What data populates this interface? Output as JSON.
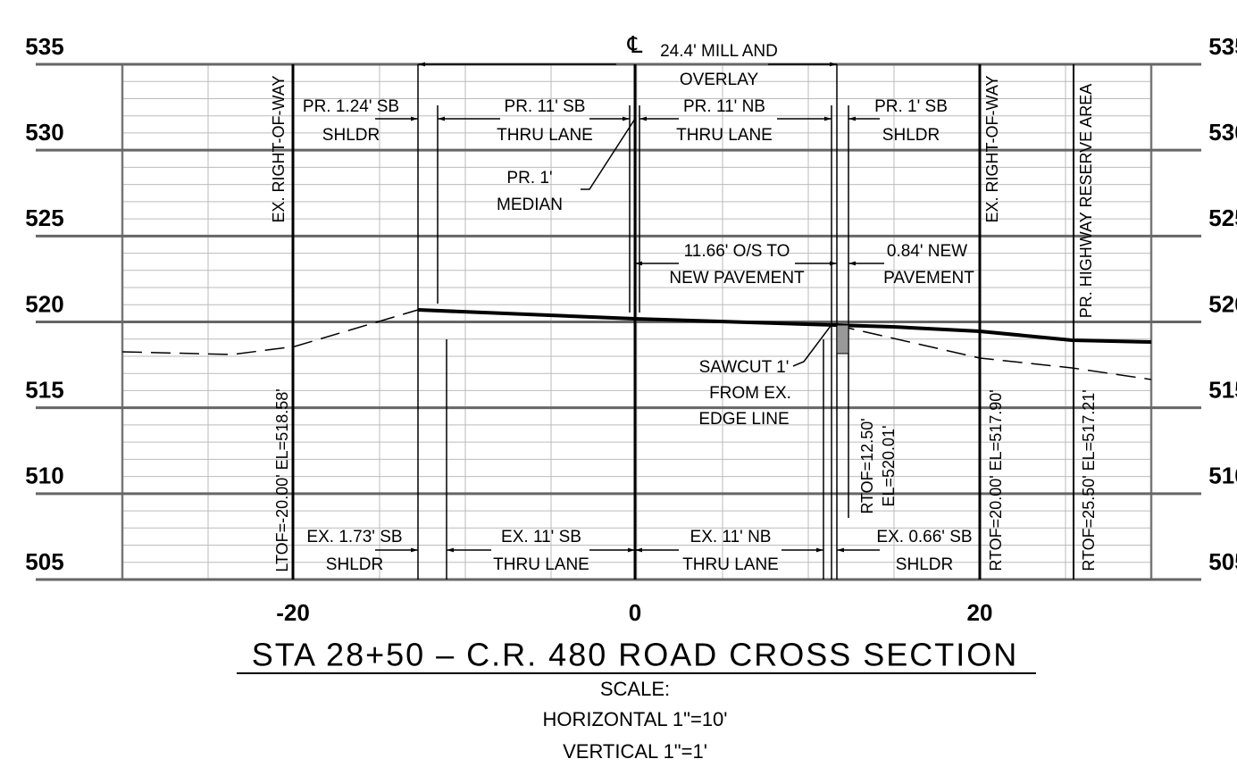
{
  "elevation_labels": [
    535,
    530,
    525,
    520,
    515,
    510,
    505
  ],
  "offset_labels": [
    -20,
    0,
    20
  ],
  "centerline_symbol": "℄",
  "annotations": {
    "mill_overlay": [
      "24.4' MILL AND",
      "OVERLAY"
    ],
    "pr_sb_shoulder": [
      "PR. 1.24' SB",
      "SHLDR"
    ],
    "pr_sb_lane": [
      "PR. 11' SB",
      "THRU LANE"
    ],
    "pr_nb_lane": [
      "PR. 11' NB",
      "THRU LANE"
    ],
    "pr_1_sb_shoulder": [
      "PR. 1' SB",
      "SHLDR"
    ],
    "median": [
      "PR. 1'",
      "MEDIAN"
    ],
    "offset_to_pavement": [
      "11.66' O/S TO",
      "NEW PAVEMENT"
    ],
    "new_pavement": [
      "0.84' NEW",
      "PAVEMENT"
    ],
    "sawcut": [
      "SAWCUT 1'",
      "FROM EX.",
      "EDGE LINE"
    ],
    "ex_sb_shoulder": [
      "EX. 1.73' SB",
      "SHLDR"
    ],
    "ex_sb_lane": [
      "EX. 11' SB",
      "THRU LANE"
    ],
    "ex_nb_lane": [
      "EX. 11' NB",
      "THRU LANE"
    ],
    "ex_nb_shoulder": [
      "EX. 0.66' SB",
      "SHLDR"
    ]
  },
  "vertical_labels": {
    "left_row": "EX. RIGHT-OF-WAY",
    "right_row": "EX. RIGHT-OF-WAY",
    "reserve": "PR. HIGHWAY RESERVE AREA",
    "left_elev": "LTOF=-20.00' EL=518.58'",
    "right_elev": "RTOF=20.00' EL=517.90'",
    "reserve_elev": "RTOF=25.50' EL=517.21'",
    "edge_offset": "RTOF=12.50'",
    "edge_elev": "EL=520.01'"
  },
  "title": "STA 28+50 – C.R. 480 ROAD CROSS SECTION",
  "scale": [
    "SCALE:",
    "HORIZONTAL  1\"=10'",
    "VERTICAL  1\"=1'"
  ]
}
